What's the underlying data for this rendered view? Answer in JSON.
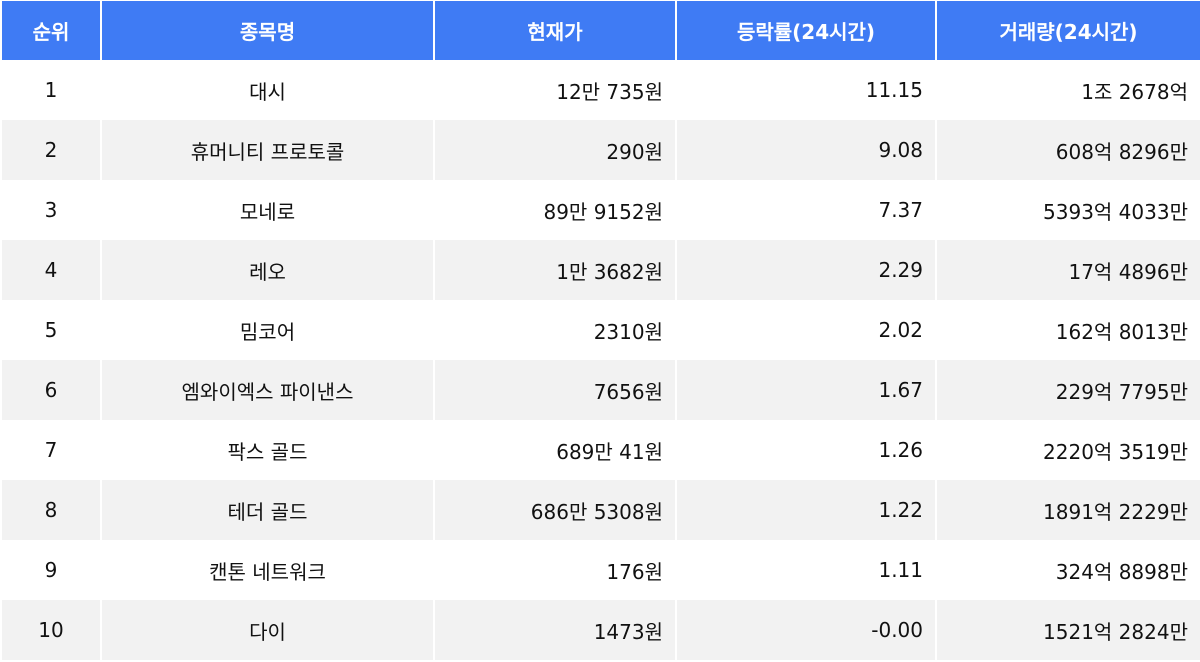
{
  "colors": {
    "header_bg": "#3f7bf4",
    "alt_row_bg": "#f2f2f2"
  },
  "headers": [
    "순위",
    "종목명",
    "현재가",
    "등락률(24시간)",
    "거래량(24시간)"
  ],
  "rows": [
    {
      "rank": "1",
      "name": "대시",
      "price": "12만 735원",
      "change": "11.15",
      "volume": "1조 2678억"
    },
    {
      "rank": "2",
      "name": "휴머니티 프로토콜",
      "price": "290원",
      "change": "9.08",
      "volume": "608억 8296만"
    },
    {
      "rank": "3",
      "name": "모네로",
      "price": "89만 9152원",
      "change": "7.37",
      "volume": "5393억 4033만"
    },
    {
      "rank": "4",
      "name": "레오",
      "price": "1만 3682원",
      "change": "2.29",
      "volume": "17억 4896만"
    },
    {
      "rank": "5",
      "name": "밈코어",
      "price": "2310원",
      "change": "2.02",
      "volume": "162억 8013만"
    },
    {
      "rank": "6",
      "name": "엠와이엑스 파이낸스",
      "price": "7656원",
      "change": "1.67",
      "volume": "229억 7795만"
    },
    {
      "rank": "7",
      "name": "팍스 골드",
      "price": "689만 41원",
      "change": "1.26",
      "volume": "2220억 3519만"
    },
    {
      "rank": "8",
      "name": "테더 골드",
      "price": "686만 5308원",
      "change": "1.22",
      "volume": "1891억 2229만"
    },
    {
      "rank": "9",
      "name": "캔톤 네트워크",
      "price": "176원",
      "change": "1.11",
      "volume": "324억 8898만"
    },
    {
      "rank": "10",
      "name": "다이",
      "price": "1473원",
      "change": "-0.00",
      "volume": "1521억 2824만"
    }
  ]
}
